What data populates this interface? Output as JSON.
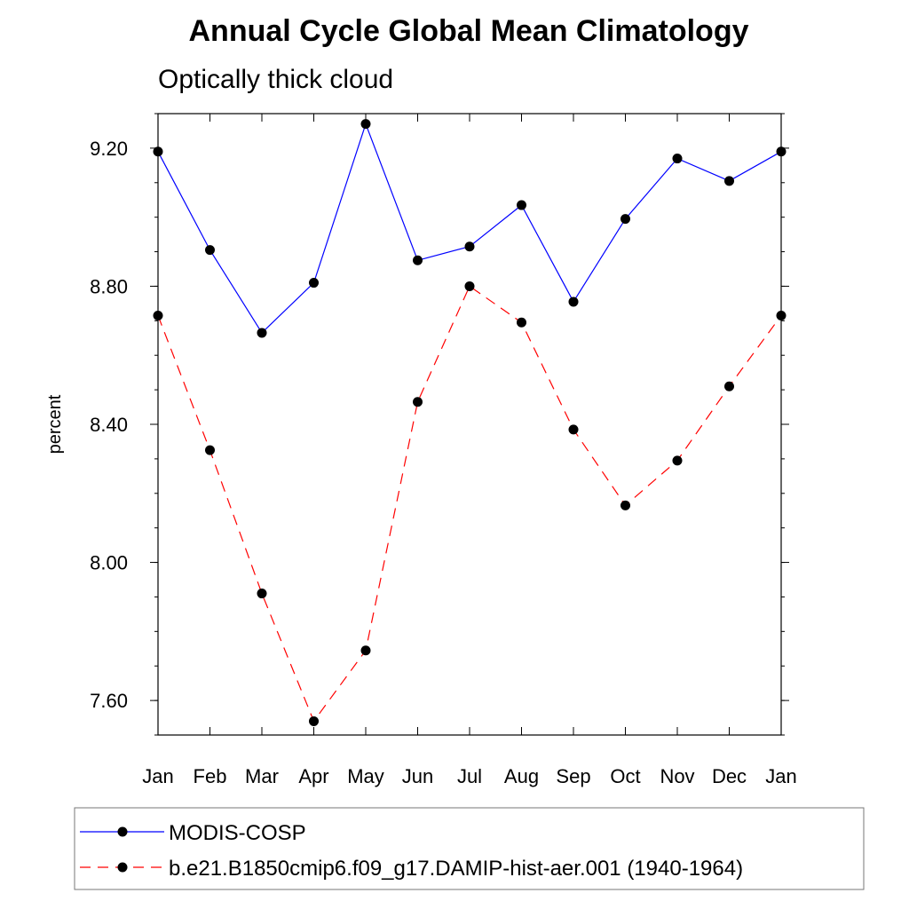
{
  "chart_data": {
    "type": "line",
    "title": "Annual Cycle Global Mean Climatology",
    "subtitle": "Optically thick cloud",
    "xlabel": "",
    "ylabel": "percent",
    "categories": [
      "Jan",
      "Feb",
      "Mar",
      "Apr",
      "May",
      "Jun",
      "Jul",
      "Aug",
      "Sep",
      "Oct",
      "Nov",
      "Dec",
      "Jan"
    ],
    "ylim": [
      7.5,
      9.3
    ],
    "yticks": [
      "7.60",
      "8.00",
      "8.40",
      "8.80",
      "9.20"
    ],
    "legend_position": "bottom",
    "series": [
      {
        "name": "MODIS-COSP",
        "color": "#0000ff",
        "dash": "solid",
        "values": [
          9.19,
          8.905,
          8.665,
          8.81,
          9.27,
          8.875,
          8.915,
          9.035,
          8.755,
          8.995,
          9.17,
          9.105,
          9.19
        ]
      },
      {
        "name": "b.e21.B1850cmip6.f09_g17.DAMIP-hist-aer.001 (1940-1964)",
        "color": "#ff0000",
        "dash": "dashed",
        "values": [
          8.715,
          8.325,
          7.91,
          7.54,
          7.745,
          8.465,
          8.8,
          8.695,
          8.385,
          8.165,
          8.295,
          8.51,
          8.715
        ]
      }
    ]
  }
}
